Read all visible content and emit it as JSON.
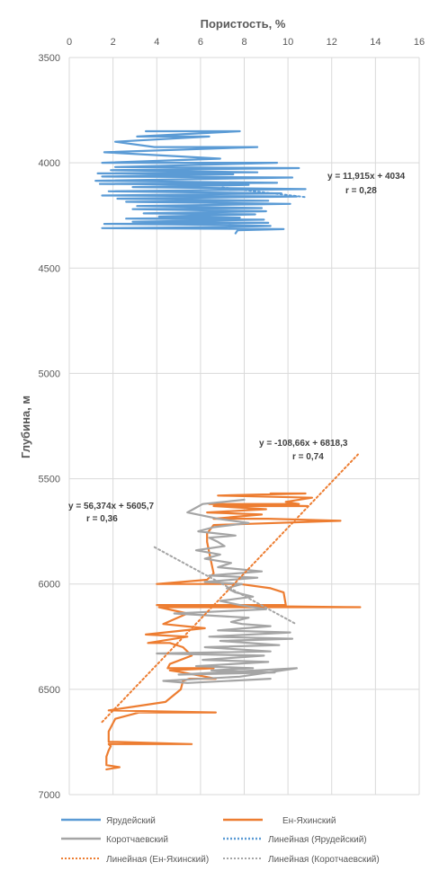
{
  "chart_data": {
    "type": "line",
    "title": "",
    "xlabel": "Пористость, %",
    "ylabel": "Глубина, м",
    "xlim": [
      0,
      16
    ],
    "ylim": [
      3500,
      7000
    ],
    "y_inverted": true,
    "x_axis_position": "top",
    "x_ticks": [
      "0",
      "2",
      "4",
      "6",
      "8",
      "10",
      "12",
      "14",
      "16"
    ],
    "y_ticks": [
      "3500",
      "4000",
      "4500",
      "5000",
      "5500",
      "6000",
      "6500",
      "7000"
    ],
    "grid": "vertical and horizontal",
    "legend_position": "bottom",
    "colors": {
      "yarudeyskiy": "#5b9bd5",
      "en_yakhinskiy": "#ed7d31",
      "korotchaevskiy": "#a5a5a5",
      "grid": "#d9d9d9",
      "axis_text": "#595959"
    },
    "series": [
      {
        "name": "Ярудейский",
        "color": "#5b9bd5",
        "style": "solid",
        "x": [
          3.5,
          7.8,
          3.1,
          6.4,
          2.1,
          3.9,
          8.6,
          1.6,
          6.9,
          1.5,
          9.5,
          2.1,
          10.5,
          1.9,
          8.6,
          1.3,
          7.5,
          1.5,
          10.2,
          1.2,
          9.5,
          1.4,
          8.2,
          2.9,
          10.8,
          1.8,
          9.7,
          1.5,
          10.4,
          2.2,
          9.1,
          2.6,
          10.1,
          3.1,
          8.8,
          2.9,
          9.0,
          3.4,
          8.5,
          4.1,
          7.8,
          2.6,
          8.9,
          2.9,
          9.1,
          1.6,
          7.1,
          9.2,
          7.2,
          1.5,
          9.8,
          7.7,
          7.6
        ],
        "y": [
          3850,
          3850,
          3875,
          3875,
          3900,
          3925,
          3925,
          3950,
          3980,
          4000,
          4000,
          4020,
          4025,
          4035,
          4045,
          4050,
          4055,
          4065,
          4070,
          4085,
          4095,
          4100,
          4105,
          4115,
          4125,
          4135,
          4145,
          4155,
          4160,
          4170,
          4180,
          4185,
          4195,
          4205,
          4215,
          4220,
          4230,
          4240,
          4245,
          4255,
          4260,
          4265,
          4270,
          4280,
          4285,
          4290,
          4295,
          4300,
          4305,
          4310,
          4315,
          4320,
          4335
        ]
      },
      {
        "name": "Ен-Яхинский",
        "color": "#ed7d31",
        "style": "solid",
        "x": [
          9.2,
          10.8,
          6.8,
          11.1,
          9.9,
          10.5,
          6.4,
          10.9,
          6.6,
          9.0,
          6.3,
          8.8,
          6.6,
          9.1,
          12.4,
          6.6,
          6.3,
          6.3,
          6.4,
          6.5,
          6.6,
          6.3,
          4.0,
          7.8,
          9.2,
          9.8,
          9.9,
          4.0,
          13.3,
          4.1,
          5.4,
          4.3,
          6.2,
          3.5,
          5.4,
          3.6,
          4.6,
          5.2,
          5.6,
          4.6,
          4.5,
          6.6,
          4.6,
          5.2,
          6.7,
          5.5,
          5.2,
          5.1,
          4.4,
          1.8,
          6.7,
          3.2,
          2.1,
          1.8,
          1.8,
          1.8,
          1.9,
          2.2,
          5.6,
          1.8,
          1.9,
          1.8,
          1.7,
          1.7,
          2.3,
          1.7
        ],
        "y": [
          5570,
          5570,
          5580,
          5590,
          5610,
          5620,
          5620,
          5630,
          5630,
          5645,
          5660,
          5670,
          5690,
          5690,
          5700,
          5720,
          5760,
          5800,
          5850,
          5900,
          5950,
          5980,
          6000,
          6000,
          6020,
          6040,
          6100,
          6100,
          6110,
          6110,
          6140,
          6190,
          6210,
          6240,
          6250,
          6280,
          6280,
          6300,
          6340,
          6380,
          6400,
          6400,
          6410,
          6420,
          6450,
          6450,
          6460,
          6500,
          6560,
          6600,
          6610,
          6610,
          6640,
          6700,
          6740,
          6750,
          6750,
          6750,
          6760,
          6760,
          6770,
          6790,
          6820,
          6860,
          6870,
          6880
        ]
      },
      {
        "name": "Коротчаевский",
        "color": "#a5a5a5",
        "style": "solid",
        "x": [
          8.0,
          6.1,
          5.4,
          6.8,
          8.2,
          6.6,
          5.9,
          7.6,
          6.4,
          6.8,
          7.1,
          5.8,
          6.9,
          6.2,
          7.4,
          6.8,
          8.8,
          6.4,
          8.6,
          6.2,
          7.9,
          7.2,
          7.6,
          8.4,
          6.9,
          7.8,
          9.0,
          4.8,
          8.2,
          7.4,
          7.9,
          9.2,
          6.8,
          10.1,
          6.4,
          10.2,
          6.9,
          9.6,
          6.2,
          9.2,
          4.0,
          8.9,
          6.1,
          9.1,
          5.8,
          8.4,
          6.5,
          9.4,
          5.0,
          10.4,
          7.8,
          4.3,
          5.4,
          9.2
        ],
        "y": [
          5600,
          5620,
          5660,
          5690,
          5710,
          5730,
          5750,
          5770,
          5780,
          5800,
          5820,
          5840,
          5860,
          5880,
          5900,
          5920,
          5940,
          5960,
          5970,
          5990,
          6000,
          6020,
          6040,
          6060,
          6080,
          6100,
          6120,
          6140,
          6160,
          6180,
          6190,
          6200,
          6220,
          6230,
          6250,
          6260,
          6270,
          6290,
          6300,
          6320,
          6330,
          6340,
          6360,
          6370,
          6390,
          6400,
          6410,
          6420,
          6430,
          6400,
          6440,
          6460,
          6470,
          6450
        ]
      },
      {
        "name": "Линейная (Ярудейский)",
        "color": "#5b9bd5",
        "style": "dotted",
        "x": [
          7.0,
          10.8
        ],
        "y": [
          4117,
          4163
        ]
      },
      {
        "name": "Линейная (Ен-Яхинский)",
        "color": "#ed7d31",
        "style": "dotted",
        "x": [
          1.5,
          13.2
        ],
        "y": [
          6655,
          5385
        ]
      },
      {
        "name": "Линейная (Коротчаевский)",
        "color": "#a5a5a5",
        "style": "dotted",
        "x": [
          3.9,
          10.4
        ],
        "y": [
          5825,
          6192
        ]
      }
    ],
    "annotations": [
      {
        "lines": [
          "y = 11,915x + 4034",
          "r = 0,28"
        ]
      },
      {
        "lines": [
          "y = -108,66x + 6818,3",
          "r = 0,74"
        ]
      },
      {
        "lines": [
          "y = 56,374x + 5605,7",
          "r = 0,36"
        ]
      }
    ]
  }
}
